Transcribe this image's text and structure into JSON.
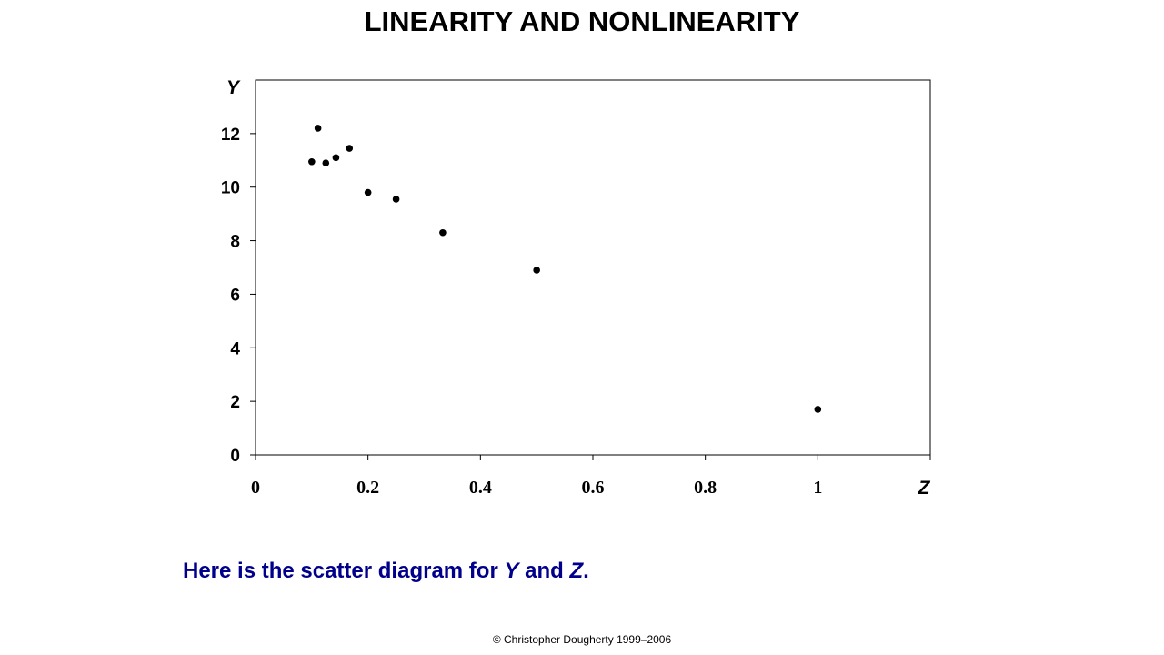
{
  "slide": {
    "title": "LINEARITY AND NONLINEARITY",
    "caption_prefix": "Here is the scatter diagram for ",
    "caption_var1": "Y",
    "caption_mid": " and ",
    "caption_var2": "Z",
    "caption_suffix": ".",
    "copyright": "© Christopher Dougherty 1999–2006"
  },
  "chart_data": {
    "type": "scatter",
    "title": "",
    "xlabel": "Z",
    "ylabel": "Y",
    "xlim": [
      0,
      1.2
    ],
    "ylim": [
      0,
      14
    ],
    "xticks": [
      0,
      0.2,
      0.4,
      0.6,
      0.8,
      1
    ],
    "xtick_labels": [
      "0",
      "0.2",
      "0.4",
      "0.6",
      "0.8",
      "1"
    ],
    "yticks": [
      0,
      2,
      4,
      6,
      8,
      10,
      12
    ],
    "ytick_labels": [
      "0",
      "2",
      "4",
      "6",
      "8",
      "10",
      "12"
    ],
    "grid": false,
    "marker_color": "#000000",
    "points": [
      {
        "x": 0.1,
        "y": 10.95
      },
      {
        "x": 0.111,
        "y": 12.2
      },
      {
        "x": 0.125,
        "y": 10.9
      },
      {
        "x": 0.143,
        "y": 11.1
      },
      {
        "x": 0.167,
        "y": 11.45
      },
      {
        "x": 0.2,
        "y": 9.8
      },
      {
        "x": 0.25,
        "y": 9.55
      },
      {
        "x": 0.333,
        "y": 8.3
      },
      {
        "x": 0.5,
        "y": 6.9
      },
      {
        "x": 1.0,
        "y": 1.7
      }
    ]
  }
}
